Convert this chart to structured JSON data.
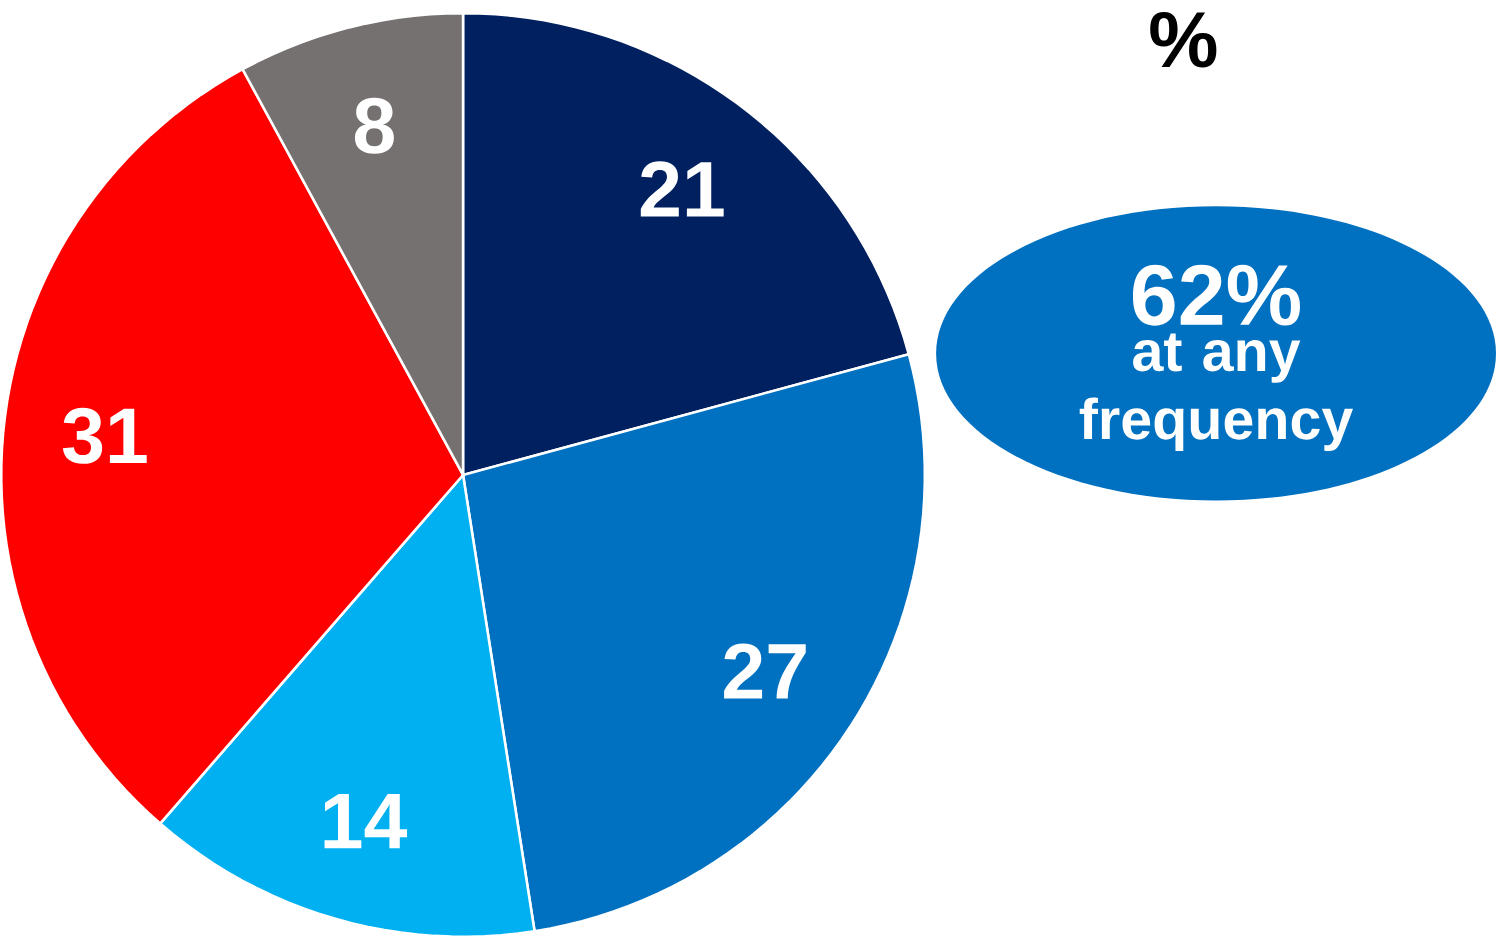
{
  "chart_data": {
    "type": "pie",
    "title": "%",
    "categories": [
      null,
      null,
      null,
      null,
      null
    ],
    "values": [
      21,
      27,
      14,
      31,
      8
    ],
    "colors": [
      "#002060",
      "#0070c0",
      "#00b0f0",
      "#ff0000",
      "#767171"
    ],
    "data_labels": true,
    "annotations": [
      "62%",
      "at any frequency"
    ]
  }
}
